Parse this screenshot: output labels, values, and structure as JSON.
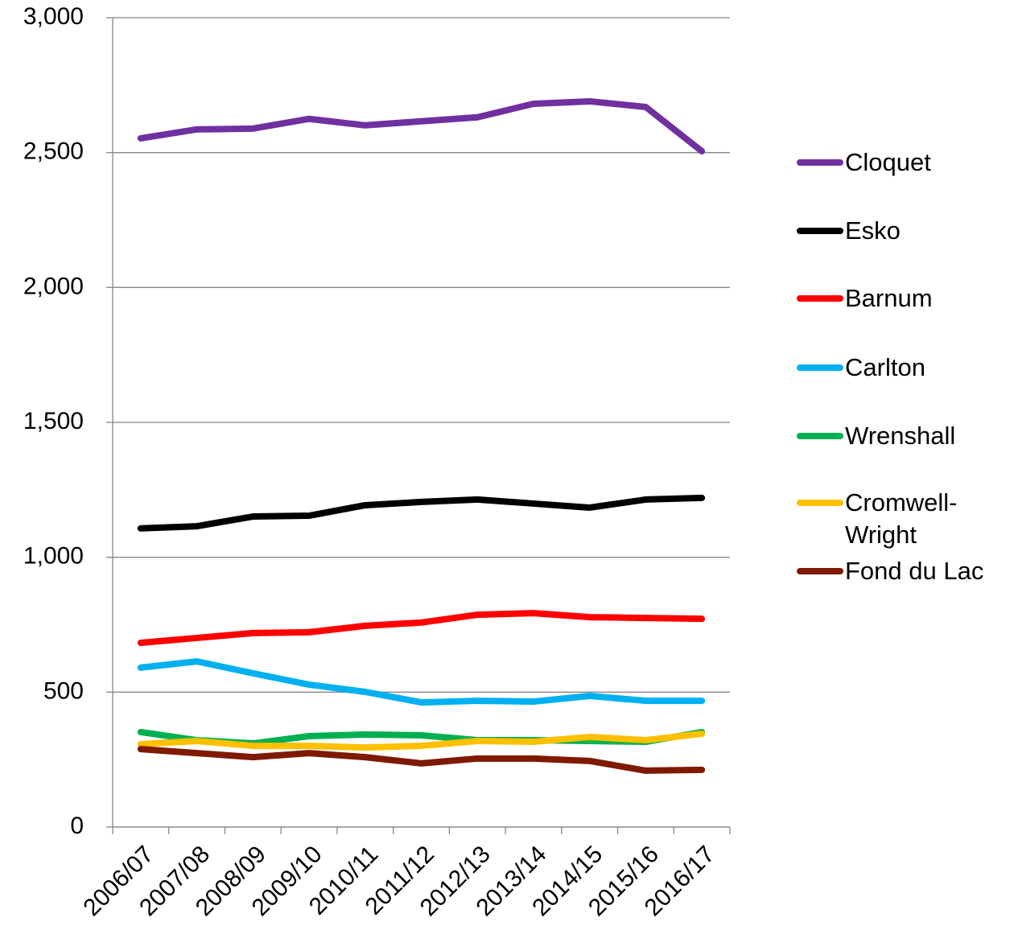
{
  "chart_data": {
    "type": "line",
    "categories": [
      "2006/07",
      "2007/08",
      "2008/09",
      "2009/10",
      "2010/11",
      "2011/12",
      "2012/13",
      "2013/14",
      "2014/15",
      "2015/16",
      "2016/17"
    ],
    "series": [
      {
        "name": "Cloquet",
        "color": "#7030a0",
        "values": [
          2553,
          2586,
          2589,
          2625,
          2601,
          2616,
          2631,
          2681,
          2690,
          2669,
          2505
        ]
      },
      {
        "name": "Esko",
        "color": "#000000",
        "values": [
          1107,
          1115,
          1151,
          1154,
          1193,
          1205,
          1214,
          1199,
          1184,
          1214,
          1220
        ]
      },
      {
        "name": "Barnum",
        "color": "#ff0000",
        "values": [
          683,
          701,
          719,
          722,
          746,
          758,
          787,
          793,
          778,
          775,
          772
        ]
      },
      {
        "name": "Carlton",
        "color": "#00b0f0",
        "values": [
          591,
          614,
          570,
          528,
          501,
          462,
          468,
          465,
          486,
          468,
          468
        ]
      },
      {
        "name": "Wrenshall",
        "color": "#00b050",
        "values": [
          352,
          322,
          310,
          337,
          343,
          340,
          322,
          322,
          319,
          316,
          352
        ]
      },
      {
        "name": "Cromwell-Wright",
        "color": "#ffc000",
        "values": [
          307,
          319,
          301,
          301,
          295,
          301,
          319,
          316,
          334,
          322,
          346
        ]
      },
      {
        "name": "Fond du Lac",
        "color": "#7f1a00",
        "values": [
          289,
          274,
          259,
          274,
          259,
          236,
          254,
          254,
          245,
          209,
          212
        ]
      }
    ],
    "ylim": [
      0,
      3000
    ],
    "yticks": [
      {
        "value": 0,
        "label": "0"
      },
      {
        "value": 500,
        "label": "500"
      },
      {
        "value": 1000,
        "label": "1,000"
      },
      {
        "value": 1500,
        "label": "1,500"
      },
      {
        "value": 2000,
        "label": "2,000"
      },
      {
        "value": 2500,
        "label": "2,500"
      },
      {
        "value": 3000,
        "label": "3,000"
      }
    ],
    "grid": true,
    "legend": "right"
  }
}
